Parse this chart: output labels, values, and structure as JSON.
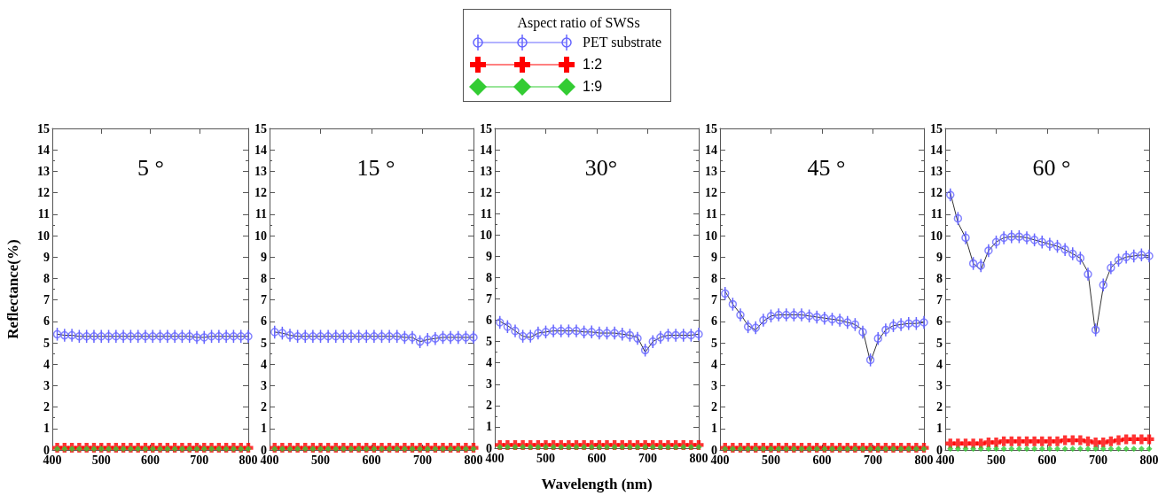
{
  "chart_data": [
    {
      "type": "line",
      "title": "5 °",
      "ylabel": "Reflectance(%)",
      "legend": "top",
      "legend_title": "Aspect ratio of SWSs",
      "xlim": [
        400,
        800
      ],
      "xticks": [
        400,
        500,
        600,
        700,
        800
      ],
      "ylim": [
        0,
        15
      ],
      "yticks": [
        0,
        1,
        2,
        3,
        4,
        5,
        6,
        7,
        8,
        9,
        10,
        11,
        12,
        13,
        14,
        15
      ],
      "x": [
        410,
        425,
        440,
        455,
        470,
        485,
        500,
        515,
        530,
        545,
        560,
        575,
        590,
        605,
        620,
        635,
        650,
        665,
        680,
        695,
        710,
        725,
        740,
        755,
        770,
        785,
        800
      ],
      "series": [
        {
          "color": "#333333",
          "marker": "none",
          "values": [
            5.4,
            5.35,
            5.35,
            5.3,
            5.3,
            5.3,
            5.3,
            5.3,
            5.3,
            5.3,
            5.3,
            5.3,
            5.3,
            5.3,
            5.3,
            5.3,
            5.3,
            5.3,
            5.3,
            5.25,
            5.25,
            5.3,
            5.3,
            5.3,
            5.3,
            5.3,
            5.3
          ]
        },
        {
          "type": "scatter",
          "name": "PET substrate",
          "color": "#6666ff",
          "marker": "circle",
          "errors": [
            0.3,
            0.3,
            0.3,
            0.3,
            0.3,
            0.3,
            0.3,
            0.3,
            0.3,
            0.3,
            0.3,
            0.3,
            0.3,
            0.3,
            0.3,
            0.3,
            0.3,
            0.3,
            0.3,
            0.3,
            0.3,
            0.3,
            0.3,
            0.3,
            0.3,
            0.3,
            0.3
          ],
          "values": [
            5.4,
            5.35,
            5.35,
            5.3,
            5.3,
            5.3,
            5.3,
            5.3,
            5.3,
            5.3,
            5.3,
            5.3,
            5.3,
            5.3,
            5.3,
            5.3,
            5.3,
            5.3,
            5.3,
            5.25,
            5.25,
            5.3,
            5.3,
            5.3,
            5.3,
            5.3,
            5.3
          ]
        },
        {
          "type": "scatter",
          "name": "1:2",
          "color": "#ff0000",
          "marker": "cross",
          "values": [
            0.1,
            0.1,
            0.1,
            0.1,
            0.1,
            0.1,
            0.1,
            0.1,
            0.1,
            0.1,
            0.1,
            0.1,
            0.1,
            0.1,
            0.1,
            0.1,
            0.1,
            0.1,
            0.1,
            0.1,
            0.1,
            0.1,
            0.1,
            0.1,
            0.1,
            0.1,
            0.1
          ]
        },
        {
          "type": "scatter",
          "name": "1:9",
          "color": "#33cc33",
          "marker": "diamond",
          "values": [
            0.05,
            0.05,
            0.05,
            0.05,
            0.05,
            0.05,
            0.05,
            0.05,
            0.05,
            0.05,
            0.05,
            0.05,
            0.05,
            0.05,
            0.05,
            0.05,
            0.05,
            0.05,
            0.05,
            0.05,
            0.05,
            0.05,
            0.05,
            0.05,
            0.05,
            0.05,
            0.05
          ]
        }
      ]
    },
    {
      "type": "line",
      "title": "15 °",
      "xlim": [
        400,
        800
      ],
      "xticks": [
        400,
        500,
        600,
        700,
        800
      ],
      "ylim": [
        0,
        15
      ],
      "yticks": [
        0,
        1,
        2,
        3,
        4,
        5,
        6,
        7,
        8,
        9,
        10,
        11,
        12,
        13,
        14,
        15
      ],
      "x": [
        410,
        425,
        440,
        455,
        470,
        485,
        500,
        515,
        530,
        545,
        560,
        575,
        590,
        605,
        620,
        635,
        650,
        665,
        680,
        695,
        710,
        725,
        740,
        755,
        770,
        785,
        800
      ],
      "series": [
        {
          "color": "#333333",
          "marker": "none",
          "values": [
            5.5,
            5.45,
            5.35,
            5.3,
            5.3,
            5.3,
            5.3,
            5.3,
            5.3,
            5.3,
            5.3,
            5.3,
            5.3,
            5.3,
            5.3,
            5.3,
            5.3,
            5.25,
            5.25,
            5.05,
            5.15,
            5.2,
            5.25,
            5.25,
            5.25,
            5.25,
            5.25
          ]
        },
        {
          "type": "scatter",
          "name": "PET substrate",
          "color": "#6666ff",
          "marker": "circle",
          "errors": [
            0.3,
            0.3,
            0.3,
            0.3,
            0.3,
            0.3,
            0.3,
            0.3,
            0.3,
            0.3,
            0.3,
            0.3,
            0.3,
            0.3,
            0.3,
            0.3,
            0.3,
            0.3,
            0.3,
            0.3,
            0.3,
            0.3,
            0.3,
            0.3,
            0.3,
            0.3,
            0.3
          ],
          "values": [
            5.5,
            5.45,
            5.35,
            5.3,
            5.3,
            5.3,
            5.3,
            5.3,
            5.3,
            5.3,
            5.3,
            5.3,
            5.3,
            5.3,
            5.3,
            5.3,
            5.3,
            5.25,
            5.25,
            5.05,
            5.15,
            5.2,
            5.25,
            5.25,
            5.25,
            5.25,
            5.25
          ]
        },
        {
          "type": "scatter",
          "name": "1:2",
          "color": "#ff0000",
          "marker": "cross",
          "values": [
            0.1,
            0.1,
            0.1,
            0.1,
            0.1,
            0.1,
            0.1,
            0.1,
            0.1,
            0.1,
            0.1,
            0.1,
            0.1,
            0.1,
            0.1,
            0.1,
            0.1,
            0.1,
            0.1,
            0.1,
            0.1,
            0.1,
            0.1,
            0.1,
            0.1,
            0.1,
            0.1
          ]
        },
        {
          "type": "scatter",
          "name": "1:9",
          "color": "#33cc33",
          "marker": "diamond",
          "values": [
            0.05,
            0.05,
            0.05,
            0.05,
            0.05,
            0.05,
            0.05,
            0.05,
            0.05,
            0.05,
            0.05,
            0.05,
            0.05,
            0.05,
            0.05,
            0.05,
            0.05,
            0.05,
            0.05,
            0.05,
            0.05,
            0.05,
            0.05,
            0.05,
            0.05,
            0.05,
            0.05
          ]
        }
      ]
    },
    {
      "type": "line",
      "title": "30°",
      "xlabel": "Wavelength (nm)",
      "xlim": [
        400,
        800
      ],
      "xticks": [
        400,
        500,
        600,
        700,
        800
      ],
      "ylim": [
        0,
        15
      ],
      "yticks": [
        0,
        1,
        2,
        3,
        4,
        5,
        6,
        7,
        8,
        9,
        10,
        11,
        12,
        13,
        14,
        15
      ],
      "x": [
        410,
        425,
        440,
        455,
        470,
        485,
        500,
        515,
        530,
        545,
        560,
        575,
        590,
        605,
        620,
        635,
        650,
        665,
        680,
        695,
        710,
        725,
        740,
        755,
        770,
        785,
        800
      ],
      "series": [
        {
          "color": "#333333",
          "marker": "none",
          "values": [
            5.95,
            5.75,
            5.5,
            5.25,
            5.2,
            5.4,
            5.45,
            5.5,
            5.5,
            5.5,
            5.5,
            5.45,
            5.45,
            5.4,
            5.4,
            5.4,
            5.35,
            5.3,
            5.2,
            4.5,
            5.0,
            5.2,
            5.3,
            5.3,
            5.3,
            5.3,
            5.35
          ]
        },
        {
          "type": "scatter",
          "name": "PET substrate",
          "color": "#6666ff",
          "marker": "circle",
          "errors": [
            0.3,
            0.3,
            0.3,
            0.3,
            0.3,
            0.3,
            0.3,
            0.3,
            0.3,
            0.3,
            0.3,
            0.3,
            0.3,
            0.3,
            0.3,
            0.3,
            0.3,
            0.3,
            0.3,
            0.3,
            0.3,
            0.3,
            0.3,
            0.3,
            0.3,
            0.3,
            0.3
          ],
          "values": [
            5.9,
            5.7,
            5.5,
            5.25,
            5.25,
            5.4,
            5.45,
            5.5,
            5.5,
            5.5,
            5.5,
            5.45,
            5.45,
            5.4,
            5.4,
            5.4,
            5.35,
            5.3,
            5.15,
            4.6,
            5.0,
            5.2,
            5.3,
            5.3,
            5.3,
            5.3,
            5.35
          ]
        },
        {
          "type": "scatter",
          "name": "1:2",
          "color": "#ff0000",
          "marker": "cross",
          "values": [
            0.15,
            0.15,
            0.15,
            0.15,
            0.15,
            0.15,
            0.15,
            0.15,
            0.15,
            0.15,
            0.15,
            0.15,
            0.15,
            0.15,
            0.15,
            0.15,
            0.15,
            0.15,
            0.15,
            0.15,
            0.15,
            0.15,
            0.15,
            0.15,
            0.15,
            0.15,
            0.15
          ]
        },
        {
          "type": "scatter",
          "name": "1:9",
          "color": "#33cc33",
          "marker": "diamond",
          "values": [
            0.05,
            0.05,
            0.05,
            0.05,
            0.05,
            0.05,
            0.05,
            0.05,
            0.05,
            0.05,
            0.05,
            0.05,
            0.05,
            0.05,
            0.05,
            0.05,
            0.05,
            0.05,
            0.05,
            0.05,
            0.05,
            0.05,
            0.05,
            0.05,
            0.05,
            0.05,
            0.05
          ]
        }
      ]
    },
    {
      "type": "line",
      "title": "45 °",
      "xlim": [
        400,
        800
      ],
      "xticks": [
        400,
        500,
        600,
        700,
        800
      ],
      "ylim": [
        0,
        15
      ],
      "yticks": [
        0,
        1,
        2,
        3,
        4,
        5,
        6,
        7,
        8,
        9,
        10,
        11,
        12,
        13,
        14,
        15
      ],
      "x": [
        410,
        425,
        440,
        455,
        470,
        485,
        500,
        515,
        530,
        545,
        560,
        575,
        590,
        605,
        620,
        635,
        650,
        665,
        680,
        695,
        710,
        725,
        740,
        755,
        770,
        785,
        800
      ],
      "series": [
        {
          "color": "#333333",
          "marker": "none",
          "values": [
            7.4,
            6.8,
            6.35,
            5.8,
            5.6,
            6.0,
            6.25,
            6.3,
            6.3,
            6.3,
            6.3,
            6.25,
            6.2,
            6.15,
            6.1,
            6.05,
            5.95,
            5.85,
            5.6,
            4.1,
            5.1,
            5.6,
            5.8,
            5.85,
            5.9,
            5.9,
            5.95
          ]
        },
        {
          "type": "scatter",
          "name": "PET substrate",
          "color": "#6666ff",
          "marker": "circle",
          "errors": [
            0.3,
            0.3,
            0.3,
            0.3,
            0.3,
            0.3,
            0.3,
            0.3,
            0.3,
            0.3,
            0.3,
            0.3,
            0.3,
            0.3,
            0.3,
            0.3,
            0.3,
            0.3,
            0.3,
            0.3,
            0.3,
            0.3,
            0.3,
            0.3,
            0.3,
            0.3,
            0.3
          ],
          "values": [
            7.3,
            6.8,
            6.3,
            5.75,
            5.7,
            6.05,
            6.25,
            6.3,
            6.3,
            6.3,
            6.3,
            6.25,
            6.2,
            6.15,
            6.1,
            6.05,
            5.95,
            5.85,
            5.5,
            4.2,
            5.2,
            5.6,
            5.8,
            5.85,
            5.9,
            5.9,
            5.95
          ]
        },
        {
          "type": "scatter",
          "name": "1:2",
          "color": "#ff0000",
          "marker": "cross",
          "values": [
            0.1,
            0.1,
            0.1,
            0.1,
            0.1,
            0.1,
            0.1,
            0.1,
            0.1,
            0.1,
            0.1,
            0.1,
            0.1,
            0.1,
            0.1,
            0.1,
            0.1,
            0.1,
            0.1,
            0.1,
            0.1,
            0.1,
            0.1,
            0.1,
            0.1,
            0.1,
            0.1
          ]
        },
        {
          "type": "scatter",
          "name": "1:9",
          "color": "#33cc33",
          "marker": "diamond",
          "values": [
            0.05,
            0.05,
            0.05,
            0.05,
            0.05,
            0.05,
            0.05,
            0.05,
            0.05,
            0.05,
            0.05,
            0.05,
            0.05,
            0.05,
            0.05,
            0.05,
            0.05,
            0.05,
            0.05,
            0.05,
            0.05,
            0.05,
            0.05,
            0.05,
            0.05,
            0.05,
            0.05
          ]
        }
      ]
    },
    {
      "type": "line",
      "title": "60 °",
      "xlim": [
        400,
        800
      ],
      "xticks": [
        400,
        500,
        600,
        700,
        800
      ],
      "ylim": [
        0,
        15
      ],
      "yticks": [
        0,
        1,
        2,
        3,
        4,
        5,
        6,
        7,
        8,
        9,
        10,
        11,
        12,
        13,
        14,
        15
      ],
      "x": [
        410,
        425,
        440,
        455,
        470,
        485,
        500,
        515,
        530,
        545,
        560,
        575,
        590,
        605,
        620,
        635,
        650,
        665,
        680,
        695,
        710,
        725,
        740,
        755,
        770,
        785,
        800
      ],
      "series": [
        {
          "color": "#333333",
          "marker": "none",
          "values": [
            12.0,
            10.6,
            9.9,
            8.7,
            8.4,
            9.3,
            9.7,
            9.9,
            9.95,
            9.95,
            9.9,
            9.8,
            9.7,
            9.6,
            9.5,
            9.35,
            9.15,
            8.95,
            8.3,
            5.4,
            7.6,
            8.5,
            8.85,
            9.0,
            9.05,
            9.1,
            9.05
          ]
        },
        {
          "type": "scatter",
          "name": "PET substrate",
          "color": "#6666ff",
          "marker": "circle",
          "errors": [
            0.3,
            0.3,
            0.3,
            0.3,
            0.3,
            0.3,
            0.3,
            0.3,
            0.3,
            0.3,
            0.3,
            0.3,
            0.3,
            0.3,
            0.3,
            0.3,
            0.3,
            0.3,
            0.3,
            0.3,
            0.3,
            0.3,
            0.3,
            0.3,
            0.3,
            0.3,
            0.3
          ],
          "values": [
            11.9,
            10.8,
            9.9,
            8.7,
            8.6,
            9.3,
            9.7,
            9.9,
            9.95,
            9.95,
            9.9,
            9.8,
            9.7,
            9.6,
            9.5,
            9.35,
            9.15,
            8.95,
            8.2,
            5.6,
            7.7,
            8.5,
            8.85,
            9.0,
            9.05,
            9.1,
            9.05
          ]
        },
        {
          "type": "scatter",
          "name": "1:2",
          "color": "#ff0000",
          "marker": "cross",
          "values": [
            0.3,
            0.3,
            0.3,
            0.3,
            0.3,
            0.35,
            0.35,
            0.4,
            0.4,
            0.4,
            0.4,
            0.4,
            0.4,
            0.4,
            0.4,
            0.45,
            0.45,
            0.45,
            0.4,
            0.35,
            0.35,
            0.4,
            0.45,
            0.5,
            0.5,
            0.5,
            0.5
          ]
        },
        {
          "type": "scatter",
          "name": "1:9",
          "color": "#33cc33",
          "marker": "diamond",
          "values": [
            0.05,
            0.05,
            0.05,
            0.05,
            0.05,
            0.05,
            0.05,
            0.05,
            0.05,
            0.05,
            0.05,
            0.05,
            0.05,
            0.05,
            0.05,
            0.05,
            0.05,
            0.05,
            0.05,
            0.05,
            0.05,
            0.05,
            0.05,
            0.05,
            0.05,
            0.05,
            0.05
          ]
        }
      ]
    }
  ]
}
